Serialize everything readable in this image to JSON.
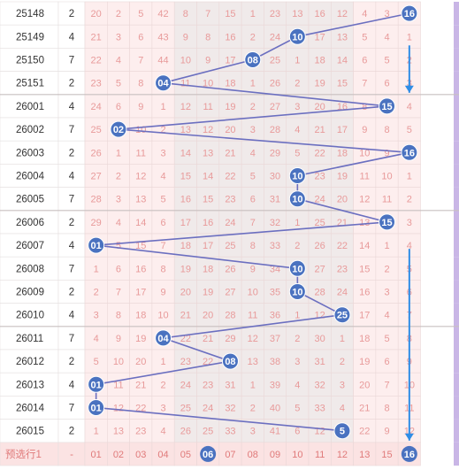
{
  "colors": {
    "pink_bg": "#fdeeee",
    "gray_bg": "#f0eaea",
    "white_bg": "#ffffff",
    "issue_text": "#333333",
    "cell_text": "#e89a9a",
    "ball_fill": "#4a72c0",
    "line": "#6b6fc0",
    "arrow": "#2f8de6",
    "purple_edge": "#c9b6e6",
    "forecast_text": "#e07a7a"
  },
  "rows": [
    {
      "issue": "25148",
      "sum": "2",
      "nums": [
        "20",
        "2",
        "5",
        "42",
        "8",
        "7",
        "15",
        "1",
        "23",
        "13",
        "16",
        "12",
        "4",
        "3",
        "16"
      ],
      "hit": 14
    },
    {
      "issue": "25149",
      "sum": "4",
      "nums": [
        "21",
        "3",
        "6",
        "43",
        "9",
        "8",
        "16",
        "2",
        "24",
        "10",
        "17",
        "13",
        "5",
        "4",
        "1"
      ],
      "hit": 9
    },
    {
      "issue": "25150",
      "sum": "7",
      "nums": [
        "22",
        "4",
        "7",
        "44",
        "10",
        "9",
        "17",
        "08",
        "25",
        "1",
        "18",
        "14",
        "6",
        "5",
        "2"
      ],
      "hit": 7
    },
    {
      "issue": "25151",
      "sum": "2",
      "nums": [
        "23",
        "5",
        "8",
        "04",
        "11",
        "10",
        "18",
        "1",
        "26",
        "2",
        "19",
        "15",
        "7",
        "6",
        "3"
      ],
      "hit": 3
    },
    {
      "issue": "26001",
      "sum": "4",
      "nums": [
        "24",
        "6",
        "9",
        "1",
        "12",
        "11",
        "19",
        "2",
        "27",
        "3",
        "20",
        "16",
        "8",
        "15",
        "4"
      ],
      "hit": 13
    },
    {
      "issue": "26002",
      "sum": "7",
      "nums": [
        "25",
        "02",
        "10",
        "2",
        "13",
        "12",
        "20",
        "3",
        "28",
        "4",
        "21",
        "17",
        "9",
        "8",
        "5"
      ],
      "hit": 1
    },
    {
      "issue": "26003",
      "sum": "2",
      "nums": [
        "26",
        "1",
        "11",
        "3",
        "14",
        "13",
        "21",
        "4",
        "29",
        "5",
        "22",
        "18",
        "10",
        "9",
        "16"
      ],
      "hit": 14
    },
    {
      "issue": "26004",
      "sum": "4",
      "nums": [
        "27",
        "2",
        "12",
        "4",
        "15",
        "14",
        "22",
        "5",
        "30",
        "10",
        "23",
        "19",
        "11",
        "10",
        "1"
      ],
      "hit": 9
    },
    {
      "issue": "26005",
      "sum": "7",
      "nums": [
        "28",
        "3",
        "13",
        "5",
        "16",
        "15",
        "23",
        "6",
        "31",
        "10",
        "24",
        "20",
        "12",
        "11",
        "2"
      ],
      "hit": 9
    },
    {
      "issue": "26006",
      "sum": "2",
      "nums": [
        "29",
        "4",
        "14",
        "6",
        "17",
        "16",
        "24",
        "7",
        "32",
        "1",
        "25",
        "21",
        "13",
        "15",
        "3"
      ],
      "hit": 13
    },
    {
      "issue": "26007",
      "sum": "4",
      "nums": [
        "01",
        "5",
        "15",
        "7",
        "18",
        "17",
        "25",
        "8",
        "33",
        "2",
        "26",
        "22",
        "14",
        "1",
        "4"
      ],
      "hit": 0
    },
    {
      "issue": "26008",
      "sum": "7",
      "nums": [
        "1",
        "6",
        "16",
        "8",
        "19",
        "18",
        "26",
        "9",
        "34",
        "10",
        "27",
        "23",
        "15",
        "2",
        "5"
      ],
      "hit": 9
    },
    {
      "issue": "26009",
      "sum": "2",
      "nums": [
        "2",
        "7",
        "17",
        "9",
        "20",
        "19",
        "27",
        "10",
        "35",
        "10",
        "28",
        "24",
        "16",
        "3",
        "6"
      ],
      "hit": 9
    },
    {
      "issue": "26010",
      "sum": "4",
      "nums": [
        "3",
        "8",
        "18",
        "10",
        "21",
        "20",
        "28",
        "11",
        "36",
        "1",
        "12",
        "25",
        "17",
        "4",
        "7"
      ],
      "hit": 11
    },
    {
      "issue": "26011",
      "sum": "7",
      "nums": [
        "4",
        "9",
        "19",
        "04",
        "22",
        "21",
        "29",
        "12",
        "37",
        "2",
        "30",
        "1",
        "18",
        "5",
        "8"
      ],
      "hit": 3
    },
    {
      "issue": "26012",
      "sum": "2",
      "nums": [
        "5",
        "10",
        "20",
        "1",
        "23",
        "22",
        "08",
        "13",
        "38",
        "3",
        "31",
        "2",
        "19",
        "6",
        "9"
      ],
      "hit": 6
    },
    {
      "issue": "26013",
      "sum": "4",
      "nums": [
        "01",
        "11",
        "21",
        "2",
        "24",
        "23",
        "31",
        "1",
        "39",
        "4",
        "32",
        "3",
        "20",
        "7",
        "10"
      ],
      "hit": 0
    },
    {
      "issue": "26014",
      "sum": "7",
      "nums": [
        "01",
        "12",
        "22",
        "3",
        "25",
        "24",
        "32",
        "2",
        "40",
        "5",
        "33",
        "4",
        "21",
        "8",
        "11"
      ],
      "hit": 0
    },
    {
      "issue": "26015",
      "sum": "2",
      "nums": [
        "1",
        "13",
        "23",
        "4",
        "26",
        "25",
        "33",
        "3",
        "41",
        "6",
        "12",
        "5",
        "22",
        "9",
        "12"
      ],
      "hit": 11
    }
  ],
  "forecast": {
    "label": "预选行1",
    "sum": "-",
    "nums": [
      "01",
      "02",
      "03",
      "04",
      "05",
      "06",
      "07",
      "08",
      "09",
      "10",
      "11",
      "12",
      "13",
      "15",
      "16"
    ],
    "highlight": [
      5,
      14
    ]
  }
}
